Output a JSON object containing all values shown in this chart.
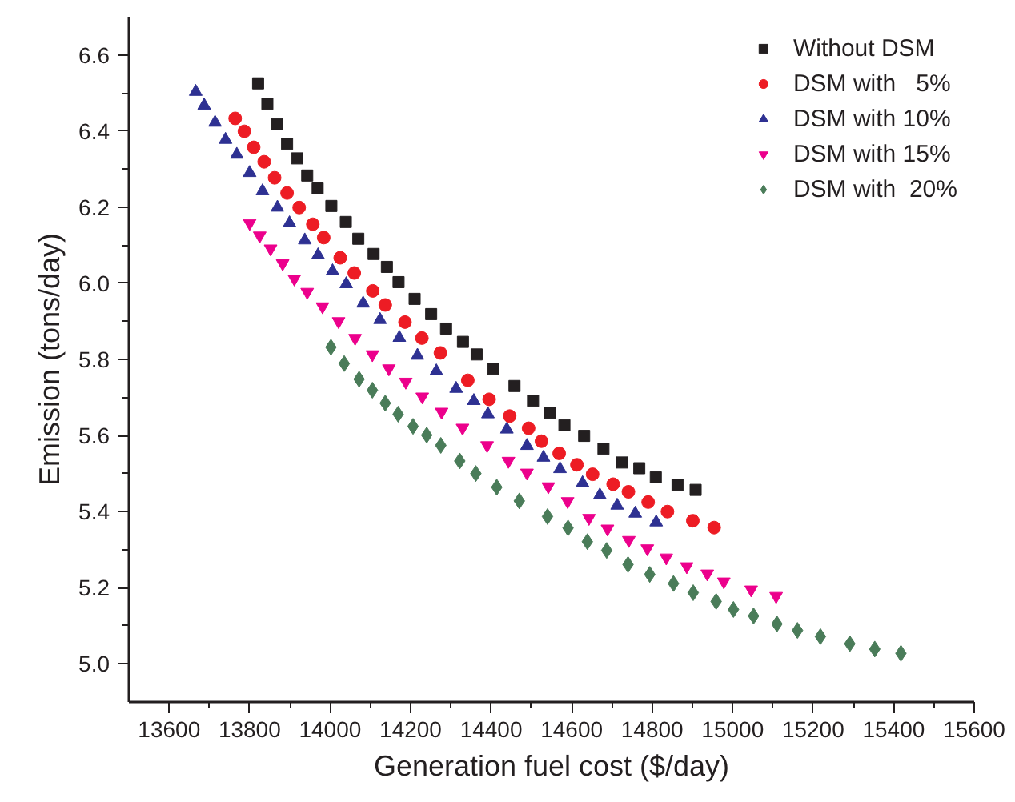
{
  "chart_data": {
    "type": "scatter",
    "xlabel": "Generation fuel cost ($/day)",
    "ylabel": "Emission (tons/day)",
    "xlim": [
      13500,
      15600
    ],
    "xticks": [
      13600,
      13800,
      14000,
      14200,
      14400,
      14600,
      14800,
      15000,
      15200,
      15400,
      15600
    ],
    "ylim": [
      4.9,
      6.7
    ],
    "yticks": [
      {
        "value": 5.0,
        "label": "5.0"
      },
      5.2,
      5.4,
      5.6,
      5.8,
      {
        "value": 6.0,
        "label": "6.0"
      },
      6.2,
      6.4,
      6.6
    ],
    "grid": false,
    "legend": "top right",
    "series": [
      {
        "name": "Without DSM",
        "color": "#231f20",
        "marker": "square",
        "x": [
          13821,
          13844,
          13868,
          13893,
          13918,
          13943,
          13969,
          14003,
          14039,
          14070,
          14108,
          14141,
          14170,
          14210,
          14251,
          14288,
          14330,
          14364,
          14405,
          14458,
          14504,
          14546,
          14582,
          14631,
          14679,
          14725,
          14768,
          14809,
          14863,
          14908
        ],
        "values": [
          6.525,
          6.471,
          6.418,
          6.366,
          6.328,
          6.283,
          6.249,
          6.203,
          6.161,
          6.117,
          6.077,
          6.043,
          6.003,
          5.959,
          5.919,
          5.881,
          5.846,
          5.813,
          5.775,
          5.73,
          5.691,
          5.66,
          5.627,
          5.599,
          5.565,
          5.529,
          5.514,
          5.49,
          5.47,
          5.457
        ]
      },
      {
        "name": "DSM with   5%",
        "color": "#ed1c24",
        "marker": "circle",
        "x": [
          13764,
          13787,
          13810,
          13836,
          13862,
          13893,
          13923,
          13957,
          13984,
          14025,
          14060,
          14106,
          14137,
          14186,
          14228,
          14274,
          14342,
          14395,
          14446,
          14493,
          14525,
          14569,
          14613,
          14652,
          14703,
          14741,
          14790,
          14838,
          14901,
          14954
        ],
        "values": [
          6.433,
          6.399,
          6.357,
          6.319,
          6.277,
          6.237,
          6.199,
          6.155,
          6.12,
          6.067,
          6.027,
          5.98,
          5.943,
          5.898,
          5.856,
          5.817,
          5.745,
          5.695,
          5.651,
          5.619,
          5.585,
          5.553,
          5.523,
          5.498,
          5.472,
          5.452,
          5.425,
          5.4,
          5.376,
          5.358
        ]
      },
      {
        "name": "DSM with 10%",
        "color": "#2e3192",
        "marker": "triangle",
        "x": [
          13666,
          13687,
          13714,
          13740,
          13768,
          13800,
          13832,
          13869,
          13899,
          13937,
          13970,
          14006,
          14040,
          14082,
          14124,
          14172,
          14217,
          14264,
          14313,
          14357,
          14392,
          14439,
          14489,
          14530,
          14571,
          14627,
          14670,
          14713,
          14758,
          14810
        ],
        "values": [
          6.503,
          6.467,
          6.422,
          6.377,
          6.338,
          6.29,
          6.242,
          6.199,
          6.158,
          6.113,
          6.074,
          6.032,
          5.998,
          5.947,
          5.904,
          5.857,
          5.81,
          5.769,
          5.723,
          5.691,
          5.656,
          5.616,
          5.573,
          5.542,
          5.512,
          5.475,
          5.443,
          5.416,
          5.395,
          5.372
        ]
      },
      {
        "name": "DSM with 15%",
        "color": "#ec008c",
        "x": [
          13800,
          13825,
          13852,
          13882,
          13911,
          13943,
          13981,
          14021,
          14062,
          14105,
          14146,
          14188,
          14229,
          14277,
          14329,
          14390,
          14443,
          14489,
          14542,
          14590,
          14643,
          14689,
          14742,
          14788,
          14835,
          14886,
          14937,
          14978,
          15046,
          15108
        ],
        "values": [
          6.158,
          6.125,
          6.091,
          6.052,
          6.012,
          5.977,
          5.939,
          5.9,
          5.856,
          5.813,
          5.776,
          5.741,
          5.702,
          5.662,
          5.62,
          5.574,
          5.533,
          5.502,
          5.466,
          5.427,
          5.383,
          5.355,
          5.325,
          5.303,
          5.279,
          5.256,
          5.237,
          5.216,
          5.195,
          5.178
        ]
      },
      {
        "name": "DSM with  20%",
        "color": "#4a7c59",
        "marker": "diamond",
        "x": [
          14002,
          14035,
          14072,
          14105,
          14137,
          14169,
          14206,
          14240,
          14275,
          14322,
          14362,
          14414,
          14470,
          14540,
          14591,
          14639,
          14687,
          14740,
          14794,
          14853,
          14902,
          14959,
          15002,
          15052,
          15110,
          15161,
          15218,
          15291,
          15353,
          15418
        ],
        "values": [
          5.832,
          5.789,
          5.748,
          5.719,
          5.685,
          5.656,
          5.624,
          5.601,
          5.574,
          5.533,
          5.5,
          5.464,
          5.428,
          5.387,
          5.357,
          5.321,
          5.298,
          5.261,
          5.235,
          5.211,
          5.187,
          5.164,
          5.143,
          5.126,
          5.105,
          5.088,
          5.072,
          5.053,
          5.039,
          5.028
        ]
      }
    ]
  }
}
